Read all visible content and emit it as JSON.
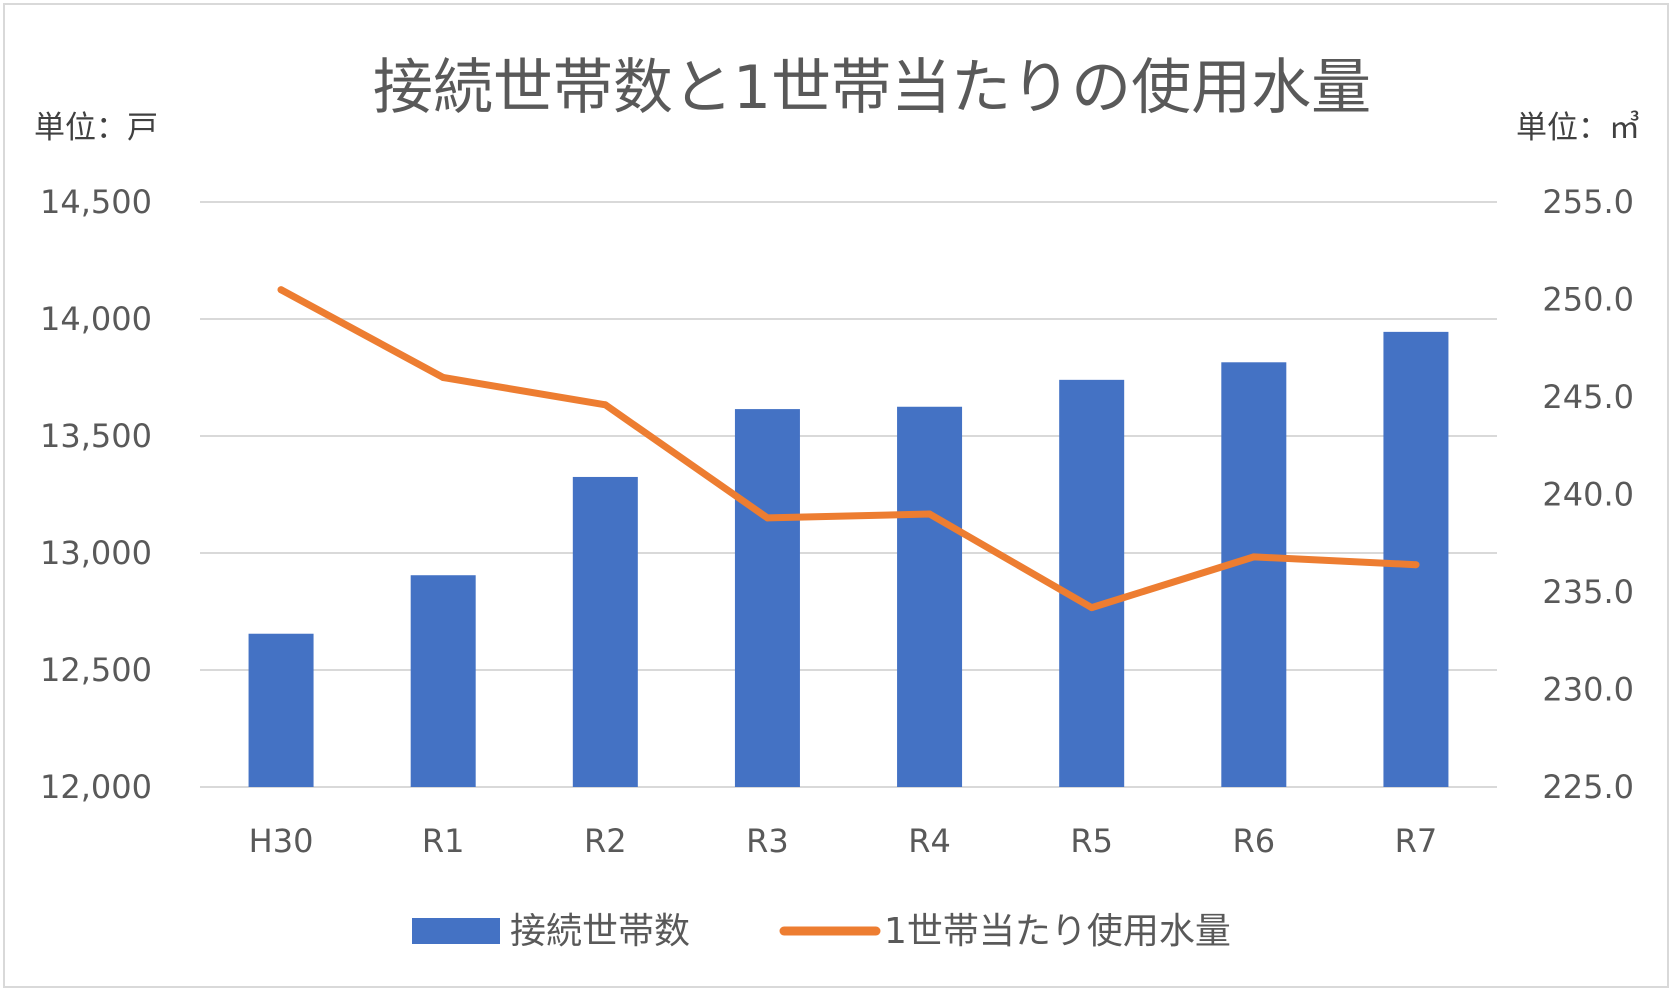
{
  "chart_data": {
    "type": "bar+line",
    "title": "接続世帯数と1世帯当たりの使用水量",
    "y_left_unit": "単位：戸",
    "y_right_unit": "単位：㎥",
    "categories": [
      "H30",
      "R1",
      "R2",
      "R3",
      "R4",
      "R5",
      "R6",
      "R7"
    ],
    "series": [
      {
        "name": "接続世帯数",
        "type": "bar",
        "axis": "left",
        "color": "#4472C4",
        "values": [
          12655,
          12905,
          13325,
          13615,
          13625,
          13740,
          13815,
          13945
        ]
      },
      {
        "name": "1世帯当たり使用水量",
        "type": "line",
        "axis": "right",
        "color": "#ED7D31",
        "values": [
          250.5,
          246.0,
          244.6,
          238.8,
          239.0,
          234.2,
          236.8,
          236.4
        ]
      }
    ],
    "y_left": {
      "min": 12000,
      "max": 14500,
      "step": 500,
      "ticks": [
        "12,000",
        "12,500",
        "13,000",
        "13,500",
        "14,000",
        "14,500"
      ]
    },
    "y_right": {
      "min": 225,
      "max": 255,
      "step": 5,
      "ticks": [
        "225.0",
        "230.0",
        "235.0",
        "240.0",
        "245.0",
        "250.0",
        "255.0"
      ]
    },
    "grid": true,
    "legend_position": "bottom"
  }
}
